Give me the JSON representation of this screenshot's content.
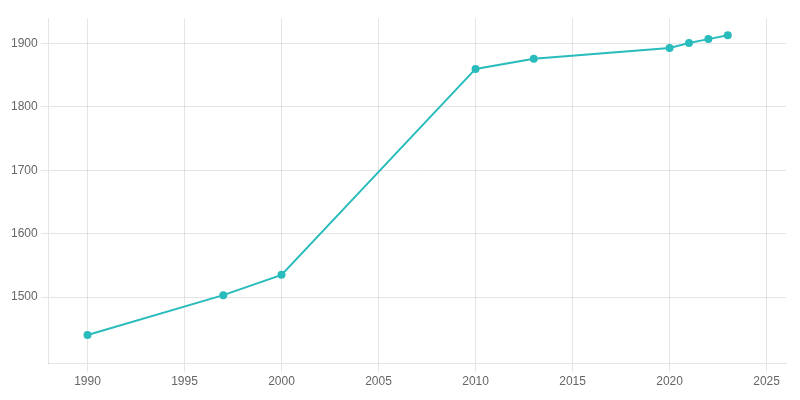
{
  "chart_data": {
    "type": "line",
    "x": [
      1990,
      1997,
      2000,
      2010,
      2013,
      2020,
      2021,
      2022,
      2023
    ],
    "values": [
      1440,
      1503,
      1535,
      1860,
      1876,
      1893,
      1901,
      1907,
      1913
    ],
    "color": "#2abcbc",
    "marker": "circle",
    "xlim": [
      1988,
      2026
    ],
    "ylim": [
      1395,
      1940
    ],
    "xticks": [
      1990,
      1995,
      2000,
      2005,
      2010,
      2015,
      2020,
      2025
    ],
    "yticks": [
      1500,
      1600,
      1700,
      1800,
      1900
    ],
    "grid": true
  }
}
